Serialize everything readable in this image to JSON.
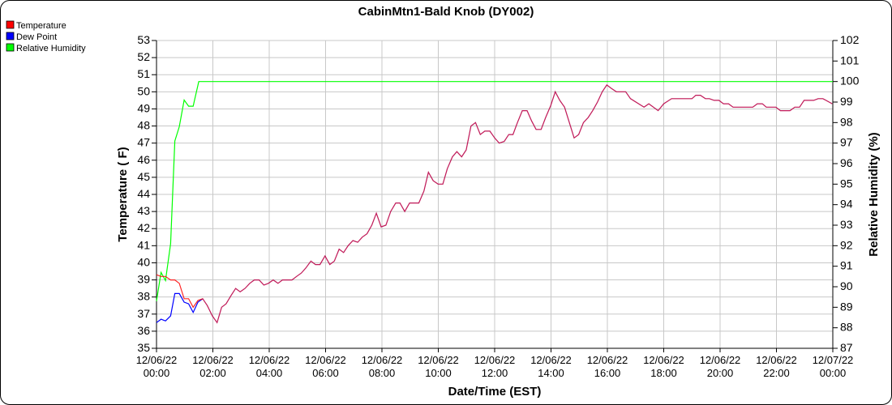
{
  "chart_data": {
    "type": "line",
    "title": "CabinMtn1-Bald Knob (DY002)",
    "xlabel": "Date/Time (EST)",
    "ylabel": "Temperature ( F)",
    "y2label": "Relative Humidity (%)",
    "ylim": [
      35,
      53
    ],
    "y2lim": [
      87,
      102
    ],
    "yticks": [
      "35",
      "36",
      "37",
      "38",
      "39",
      "40",
      "41",
      "42",
      "43",
      "44",
      "45",
      "46",
      "47",
      "48",
      "49",
      "50",
      "51",
      "52",
      "53"
    ],
    "y2ticks": [
      "87",
      "88",
      "89",
      "90",
      "91",
      "92",
      "93",
      "94",
      "95",
      "96",
      "97",
      "98",
      "99",
      "100",
      "101",
      "102"
    ],
    "xlim_hours": [
      0,
      24
    ],
    "xticks": [
      {
        "date": "12/06/22",
        "time": "00:00"
      },
      {
        "date": "12/06/22",
        "time": "02:00"
      },
      {
        "date": "12/06/22",
        "time": "04:00"
      },
      {
        "date": "12/06/22",
        "time": "06:00"
      },
      {
        "date": "12/06/22",
        "time": "08:00"
      },
      {
        "date": "12/06/22",
        "time": "10:00"
      },
      {
        "date": "12/06/22",
        "time": "12:00"
      },
      {
        "date": "12/06/22",
        "time": "14:00"
      },
      {
        "date": "12/06/22",
        "time": "16:00"
      },
      {
        "date": "12/06/22",
        "time": "18:00"
      },
      {
        "date": "12/06/22",
        "time": "20:00"
      },
      {
        "date": "12/06/22",
        "time": "22:00"
      },
      {
        "date": "12/07/22",
        "time": "00:00"
      }
    ],
    "grid": true,
    "legend_placement": "top-left",
    "series": [
      {
        "name": "Temperature",
        "color": "#ff0000",
        "axis": "left",
        "points": [
          [
            0,
            39.3
          ],
          [
            0.16,
            39.2
          ],
          [
            0.32,
            39.2
          ],
          [
            0.5,
            39.0
          ],
          [
            0.65,
            39.0
          ],
          [
            0.81,
            38.8
          ],
          [
            0.98,
            37.9
          ],
          [
            1.14,
            37.9
          ],
          [
            1.3,
            37.4
          ],
          [
            1.47,
            37.8
          ],
          [
            1.64,
            37.9
          ],
          [
            1.8,
            37.5
          ],
          [
            1.98,
            36.9
          ],
          [
            2.15,
            36.5
          ],
          [
            2.31,
            37.4
          ],
          [
            2.47,
            37.6
          ],
          [
            2.65,
            38.1
          ],
          [
            2.81,
            38.5
          ],
          [
            2.97,
            38.3
          ],
          [
            3.14,
            38.5
          ],
          [
            3.31,
            38.8
          ],
          [
            3.47,
            39.0
          ],
          [
            3.64,
            39.0
          ],
          [
            3.81,
            38.7
          ],
          [
            3.97,
            38.8
          ],
          [
            4.14,
            39.0
          ],
          [
            4.31,
            38.8
          ],
          [
            4.47,
            39.0
          ],
          [
            4.81,
            39.0
          ],
          [
            4.97,
            39.2
          ],
          [
            5.14,
            39.4
          ],
          [
            5.3,
            39.7
          ],
          [
            5.48,
            40.1
          ],
          [
            5.64,
            39.9
          ],
          [
            5.8,
            39.9
          ],
          [
            5.98,
            40.4
          ],
          [
            6.15,
            39.9
          ],
          [
            6.31,
            40.1
          ],
          [
            6.48,
            40.8
          ],
          [
            6.64,
            40.6
          ],
          [
            6.8,
            41.0
          ],
          [
            6.97,
            41.3
          ],
          [
            7.14,
            41.2
          ],
          [
            7.3,
            41.5
          ],
          [
            7.47,
            41.7
          ],
          [
            7.64,
            42.2
          ],
          [
            7.8,
            42.9
          ],
          [
            7.97,
            42.1
          ],
          [
            8.14,
            42.2
          ],
          [
            8.31,
            43.0
          ],
          [
            8.49,
            43.5
          ],
          [
            8.64,
            43.5
          ],
          [
            8.81,
            43.0
          ],
          [
            8.98,
            43.5
          ],
          [
            9.31,
            43.5
          ],
          [
            9.49,
            44.2
          ],
          [
            9.65,
            45.3
          ],
          [
            9.82,
            44.8
          ],
          [
            9.99,
            44.6
          ],
          [
            10.16,
            44.6
          ],
          [
            10.32,
            45.5
          ],
          [
            10.5,
            46.2
          ],
          [
            10.66,
            46.5
          ],
          [
            10.83,
            46.2
          ],
          [
            10.99,
            46.6
          ],
          [
            11.16,
            48.0
          ],
          [
            11.32,
            48.2
          ],
          [
            11.49,
            47.5
          ],
          [
            11.65,
            47.7
          ],
          [
            11.83,
            47.7
          ],
          [
            12.0,
            47.3
          ],
          [
            12.16,
            47.0
          ],
          [
            12.34,
            47.1
          ],
          [
            12.5,
            47.5
          ],
          [
            12.65,
            47.5
          ],
          [
            12.81,
            48.2
          ],
          [
            12.98,
            48.9
          ],
          [
            13.15,
            48.9
          ],
          [
            13.31,
            48.3
          ],
          [
            13.47,
            47.8
          ],
          [
            13.65,
            47.8
          ],
          [
            13.81,
            48.5
          ],
          [
            13.99,
            49.2
          ],
          [
            14.15,
            50.0
          ],
          [
            14.31,
            49.5
          ],
          [
            14.48,
            49.1
          ],
          [
            14.65,
            48.2
          ],
          [
            14.82,
            47.3
          ],
          [
            14.98,
            47.5
          ],
          [
            15.15,
            48.2
          ],
          [
            15.32,
            48.5
          ],
          [
            15.48,
            48.9
          ],
          [
            15.65,
            49.4
          ],
          [
            15.82,
            50.0
          ],
          [
            15.98,
            50.4
          ],
          [
            16.14,
            50.2
          ],
          [
            16.32,
            50.0
          ],
          [
            16.65,
            50.0
          ],
          [
            16.82,
            49.6
          ],
          [
            17.3,
            49.1
          ],
          [
            17.47,
            49.3
          ],
          [
            17.8,
            48.9
          ],
          [
            18.0,
            49.3
          ],
          [
            18.28,
            49.6
          ],
          [
            19.0,
            49.6
          ],
          [
            19.14,
            49.8
          ],
          [
            19.3,
            49.8
          ],
          [
            19.48,
            49.6
          ],
          [
            19.62,
            49.6
          ],
          [
            19.79,
            49.5
          ],
          [
            19.96,
            49.5
          ],
          [
            20.12,
            49.3
          ],
          [
            20.3,
            49.3
          ],
          [
            20.46,
            49.1
          ],
          [
            21.16,
            49.1
          ],
          [
            21.32,
            49.3
          ],
          [
            21.5,
            49.3
          ],
          [
            21.64,
            49.1
          ],
          [
            21.98,
            49.1
          ],
          [
            22.14,
            48.9
          ],
          [
            22.48,
            48.9
          ],
          [
            22.65,
            49.1
          ],
          [
            22.82,
            49.1
          ],
          [
            22.98,
            49.5
          ],
          [
            23.32,
            49.5
          ],
          [
            23.48,
            49.6
          ],
          [
            23.65,
            49.6
          ],
          [
            23.98,
            49.3
          ]
        ]
      },
      {
        "name": "Dew Point",
        "color": "#0000ff",
        "axis": "left",
        "points": [
          [
            0,
            36.5
          ],
          [
            0.16,
            36.7
          ],
          [
            0.32,
            36.6
          ],
          [
            0.5,
            36.9
          ],
          [
            0.65,
            38.2
          ],
          [
            0.81,
            38.2
          ],
          [
            0.98,
            37.7
          ],
          [
            1.14,
            37.6
          ],
          [
            1.3,
            37.1
          ],
          [
            1.47,
            37.7
          ],
          [
            1.64,
            37.9
          ]
        ]
      },
      {
        "name": "Relative Humidity",
        "color": "#00ff00",
        "axis": "right",
        "points": [
          [
            0,
            89.3
          ],
          [
            0.16,
            90.7
          ],
          [
            0.32,
            90.3
          ],
          [
            0.5,
            92.1
          ],
          [
            0.65,
            97.1
          ],
          [
            0.81,
            97.8
          ],
          [
            0.98,
            99.1
          ],
          [
            1.14,
            98.8
          ],
          [
            1.3,
            98.8
          ],
          [
            1.5,
            100
          ],
          [
            24,
            100
          ]
        ]
      }
    ]
  }
}
